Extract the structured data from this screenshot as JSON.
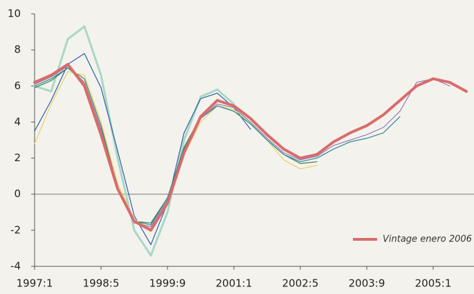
{
  "chart_data": {
    "type": "line",
    "categories": [
      "1997:1",
      null,
      null,
      null,
      "1998:5",
      null,
      null,
      null,
      "1999:9",
      null,
      null,
      null,
      "2001:1",
      null,
      null,
      null,
      "2002:5",
      null,
      null,
      null,
      "2003:9",
      null,
      null,
      null,
      "2005:1",
      null,
      null
    ],
    "series": [
      {
        "color": "#a7d8c6",
        "width": 3,
        "values": [
          6.0,
          5.7,
          8.6,
          9.3,
          6.6,
          2.0,
          -2.0,
          -3.4,
          -1.0,
          3.0,
          5.4,
          5.8,
          5.0,
          null,
          null,
          null,
          null,
          null,
          null,
          null,
          null,
          null,
          null,
          null,
          null,
          null,
          null
        ]
      },
      {
        "color": "#2a5caa",
        "width": 1.2,
        "values": [
          3.5,
          5.2,
          7.2,
          7.8,
          5.9,
          2.4,
          -1.2,
          -2.8,
          -0.5,
          3.4,
          5.3,
          5.6,
          4.8,
          3.6,
          null,
          null,
          null,
          null,
          null,
          null,
          null,
          null,
          null,
          null,
          null,
          null,
          null
        ]
      },
      {
        "color": "#3a7a5a",
        "width": 1.2,
        "values": [
          5.9,
          6.3,
          7.0,
          6.4,
          3.8,
          0.4,
          -1.5,
          -1.6,
          -0.2,
          2.6,
          4.3,
          4.9,
          4.6,
          3.9,
          3.0,
          2.2,
          1.7,
          1.8,
          null,
          null,
          null,
          null,
          null,
          null,
          null,
          null,
          null
        ]
      },
      {
        "color": "#e8d36a",
        "width": 1.2,
        "values": [
          2.8,
          5.0,
          6.8,
          6.6,
          4.0,
          0.6,
          -1.4,
          -1.9,
          -0.3,
          2.2,
          4.0,
          4.9,
          4.7,
          4.0,
          3.0,
          1.9,
          1.4,
          1.6,
          null,
          null,
          null,
          null,
          null,
          null,
          null,
          null,
          null
        ]
      },
      {
        "color": "#2b8a8a",
        "width": 1.2,
        "values": [
          6.0,
          6.4,
          7.0,
          6.2,
          3.6,
          0.4,
          -1.5,
          -1.7,
          -0.2,
          2.5,
          4.2,
          4.9,
          4.6,
          3.9,
          3.0,
          2.2,
          1.8,
          2.0,
          2.5,
          2.9,
          3.1,
          3.4,
          4.3,
          null,
          null,
          null,
          null
        ]
      },
      {
        "color": "#8e7cc3",
        "width": 1.2,
        "values": [
          6.1,
          6.5,
          7.1,
          6.2,
          3.6,
          0.3,
          -1.6,
          -1.8,
          -0.3,
          2.4,
          4.2,
          5.0,
          4.8,
          4.0,
          3.1,
          2.3,
          1.9,
          2.1,
          2.7,
          3.0,
          3.3,
          3.7,
          4.6,
          6.2,
          6.4,
          6.0,
          null
        ]
      },
      {
        "name": "Vintage enero 2006",
        "color": "#d96b6b",
        "width": 4,
        "values": [
          6.2,
          6.6,
          7.2,
          6.0,
          3.3,
          0.3,
          -1.5,
          -2.0,
          -0.5,
          2.3,
          4.3,
          5.2,
          4.9,
          4.2,
          3.3,
          2.5,
          2.0,
          2.2,
          2.9,
          3.4,
          3.8,
          4.4,
          5.2,
          6.0,
          6.4,
          6.2,
          5.7
        ]
      }
    ],
    "ylim": [
      -4,
      10
    ],
    "yticks": [
      -4,
      -2,
      0,
      2,
      4,
      6,
      8,
      10
    ],
    "legend": "lower right"
  }
}
